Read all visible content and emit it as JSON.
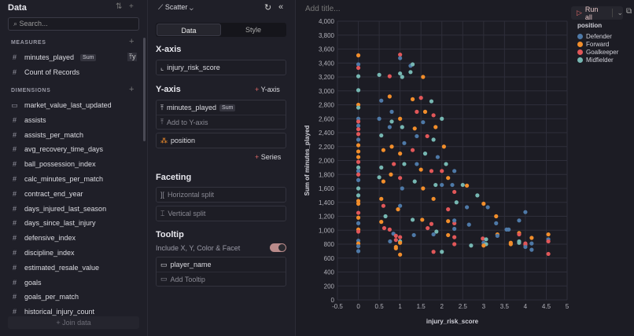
{
  "data_panel": {
    "title": "Data",
    "search_placeholder": "Search...",
    "measures_label": "MEASURES",
    "dimensions_label": "DIMENSIONS",
    "measures": [
      {
        "name": "minutes_played",
        "badge": "Sum"
      },
      {
        "name": "Count of Records"
      }
    ],
    "dimensions": [
      {
        "name": "market_value_last_updated",
        "icon": "calendar-icon"
      },
      {
        "name": "assists"
      },
      {
        "name": "assists_per_match"
      },
      {
        "name": "avg_recovery_time_days"
      },
      {
        "name": "ball_possession_index"
      },
      {
        "name": "calc_minutes_per_match"
      },
      {
        "name": "contract_end_year"
      },
      {
        "name": "days_injured_last_season"
      },
      {
        "name": "days_since_last_injury"
      },
      {
        "name": "defensive_index"
      },
      {
        "name": "discipline_index"
      },
      {
        "name": "estimated_resale_value"
      },
      {
        "name": "goals"
      },
      {
        "name": "goals_per_match"
      },
      {
        "name": "historical_injury_count"
      }
    ],
    "join_label": "+ Join data"
  },
  "config": {
    "chart_type": "Scatter",
    "tab_data": "Data",
    "tab_style": "Style",
    "x_axis_label": "X-axis",
    "x_field": "injury_risk_score",
    "y_axis_label": "Y-axis",
    "add_y": "Y-axis",
    "y_field": "minutes_played",
    "y_badge": "Sum",
    "add_to_y": "Add to Y-axis",
    "series_field": "position",
    "add_series": "Series",
    "faceting_label": "Faceting",
    "horizontal_split": "Horizontal split",
    "vertical_split": "Vertical split",
    "tooltip_label": "Tooltip",
    "include_label": "Include X, Y, Color & Facet",
    "include_on": true,
    "tooltip_field": "player_name",
    "add_tooltip": "Add Tooltip"
  },
  "main": {
    "title_placeholder": "Add title...",
    "run_label": "Run all"
  },
  "chart_data": {
    "type": "scatter",
    "xlabel": "injury_risk_score",
    "ylabel": "Sum of minutes_played",
    "xlim": [
      -0.5,
      5
    ],
    "ylim": [
      0,
      4000
    ],
    "grid": true,
    "x_ticks": [
      "-0.5",
      "0",
      "0.5",
      "1",
      "1.5",
      "2",
      "2.5",
      "3",
      "3.5",
      "4",
      "4.5",
      "5"
    ],
    "y_ticks": [
      "0",
      "200",
      "400",
      "600",
      "800",
      "1,000",
      "1,200",
      "1,400",
      "1,600",
      "1,800",
      "2,000",
      "2,200",
      "2,400",
      "2,600",
      "2,800",
      "3,000",
      "3,200",
      "3,400",
      "3,600",
      "3,800",
      "4,000"
    ],
    "legend": {
      "title": "position",
      "placement": "top-right",
      "items": [
        {
          "name": "Defender",
          "color": "#4e79a7"
        },
        {
          "name": "Forward",
          "color": "#f28e2b"
        },
        {
          "name": "Goalkeeper",
          "color": "#e15759"
        },
        {
          "name": "Midfielder",
          "color": "#76b7b2"
        }
      ]
    },
    "points": [
      [
        0,
        3510,
        "F"
      ],
      [
        0,
        3380,
        "D"
      ],
      [
        0,
        3330,
        "G"
      ],
      [
        0,
        3210,
        "M"
      ],
      [
        0,
        3010,
        "M"
      ],
      [
        0,
        2800,
        "F"
      ],
      [
        0,
        2760,
        "M"
      ],
      [
        0,
        2600,
        "D"
      ],
      [
        0,
        2560,
        "G"
      ],
      [
        0,
        2500,
        "D"
      ],
      [
        0,
        2450,
        "G"
      ],
      [
        0,
        2380,
        "G"
      ],
      [
        0,
        2300,
        "D"
      ],
      [
        0,
        2220,
        "F"
      ],
      [
        0,
        2130,
        "F"
      ],
      [
        0,
        2050,
        "F"
      ],
      [
        0,
        1980,
        "G"
      ],
      [
        0,
        1900,
        "M"
      ],
      [
        0,
        1850,
        "D"
      ],
      [
        0,
        1800,
        "G"
      ],
      [
        0,
        1720,
        "D"
      ],
      [
        0,
        1600,
        "M"
      ],
      [
        0,
        1500,
        "M"
      ],
      [
        0,
        1420,
        "F"
      ],
      [
        0,
        1380,
        "F"
      ],
      [
        0,
        1250,
        "G"
      ],
      [
        0,
        1180,
        "F"
      ],
      [
        0,
        1100,
        "D"
      ],
      [
        0,
        1010,
        "F"
      ],
      [
        0,
        980,
        "G"
      ],
      [
        0,
        850,
        "D"
      ],
      [
        0,
        810,
        "F"
      ],
      [
        0,
        770,
        "D"
      ],
      [
        0,
        700,
        "D"
      ],
      [
        0.5,
        3230,
        "M"
      ],
      [
        0.55,
        2860,
        "D"
      ],
      [
        0.5,
        2600,
        "D"
      ],
      [
        0.55,
        2360,
        "M"
      ],
      [
        0.6,
        2150,
        "F"
      ],
      [
        0.55,
        1900,
        "M"
      ],
      [
        0.5,
        1760,
        "M"
      ],
      [
        0.6,
        1700,
        "F"
      ],
      [
        0.55,
        1450,
        "F"
      ],
      [
        0.6,
        1350,
        "G"
      ],
      [
        0.55,
        1120,
        "F"
      ],
      [
        0.62,
        1030,
        "G"
      ],
      [
        0.65,
        1200,
        "M"
      ],
      [
        0.75,
        3210,
        "G"
      ],
      [
        0.75,
        2920,
        "F"
      ],
      [
        0.8,
        2700,
        "D"
      ],
      [
        0.8,
        2560,
        "M"
      ],
      [
        0.75,
        2480,
        "D"
      ],
      [
        0.8,
        2200,
        "F"
      ],
      [
        0.85,
        1950,
        "G"
      ],
      [
        0.78,
        1800,
        "F"
      ],
      [
        0.76,
        840,
        "D"
      ],
      [
        0.84,
        950,
        "D"
      ],
      [
        0.9,
        920,
        "G"
      ],
      [
        0.9,
        860,
        "G"
      ],
      [
        0.9,
        760,
        "F"
      ],
      [
        0.9,
        740,
        "F"
      ],
      [
        0.75,
        1010,
        "G"
      ],
      [
        1,
        3520,
        "G"
      ],
      [
        1,
        3470,
        "D"
      ],
      [
        1,
        3250,
        "M"
      ],
      [
        1.05,
        3200,
        "M"
      ],
      [
        1,
        2600,
        "F"
      ],
      [
        1.05,
        2480,
        "M"
      ],
      [
        1.1,
        2250,
        "D"
      ],
      [
        1.0,
        2100,
        "F"
      ],
      [
        1.1,
        1950,
        "M"
      ],
      [
        1.0,
        1750,
        "G"
      ],
      [
        1.05,
        1600,
        "D"
      ],
      [
        1.0,
        1350,
        "D"
      ],
      [
        1.0,
        900,
        "G"
      ],
      [
        1.0,
        840,
        "M"
      ],
      [
        1.0,
        820,
        "F"
      ],
      [
        1.0,
        650,
        "F"
      ],
      [
        0.95,
        1300,
        "F"
      ],
      [
        1.25,
        3360,
        "D"
      ],
      [
        1.3,
        3380,
        "M"
      ],
      [
        1.25,
        3270,
        "M"
      ],
      [
        1.3,
        2880,
        "F"
      ],
      [
        1.4,
        2700,
        "G"
      ],
      [
        1.35,
        2460,
        "F"
      ],
      [
        1.4,
        2350,
        "D"
      ],
      [
        1.3,
        2150,
        "G"
      ],
      [
        1.4,
        1950,
        "D"
      ],
      [
        1.35,
        1700,
        "M"
      ],
      [
        1.33,
        930,
        "D"
      ],
      [
        1.3,
        1150,
        "M"
      ],
      [
        1.55,
        3200,
        "F"
      ],
      [
        1.5,
        2900,
        "G"
      ],
      [
        1.6,
        2700,
        "F"
      ],
      [
        1.55,
        2550,
        "D"
      ],
      [
        1.65,
        2350,
        "G"
      ],
      [
        1.6,
        2100,
        "M"
      ],
      [
        1.5,
        1870,
        "F"
      ],
      [
        1.55,
        1600,
        "F"
      ],
      [
        1.53,
        1150,
        "F"
      ],
      [
        1.66,
        1030,
        "G"
      ],
      [
        1.75,
        1090,
        "G"
      ],
      [
        1.75,
        2850,
        "M"
      ],
      [
        1.8,
        2650,
        "G"
      ],
      [
        1.85,
        2480,
        "F"
      ],
      [
        1.8,
        2300,
        "M"
      ],
      [
        1.9,
        2050,
        "D"
      ],
      [
        1.75,
        1850,
        "G"
      ],
      [
        1.85,
        1650,
        "M"
      ],
      [
        1.8,
        1450,
        "F"
      ],
      [
        1.8,
        940,
        "D"
      ],
      [
        1.87,
        980,
        "M"
      ],
      [
        1.8,
        690,
        "G"
      ],
      [
        2,
        2600,
        "M"
      ],
      [
        2.05,
        2200,
        "F"
      ],
      [
        2.0,
        1850,
        "G"
      ],
      [
        2.1,
        1950,
        "M"
      ],
      [
        2.0,
        1650,
        "D"
      ],
      [
        2.15,
        1750,
        "F"
      ],
      [
        2.15,
        1300,
        "G"
      ],
      [
        2.15,
        1130,
        "F"
      ],
      [
        2.15,
        930,
        "F"
      ],
      [
        2.0,
        690,
        "M"
      ],
      [
        2.3,
        1850,
        "D"
      ],
      [
        2.25,
        1650,
        "D"
      ],
      [
        2.3,
        1550,
        "G"
      ],
      [
        2.35,
        1400,
        "M"
      ],
      [
        2.3,
        1100,
        "G"
      ],
      [
        2.3,
        1020,
        "D"
      ],
      [
        2.3,
        900,
        "G"
      ],
      [
        2.3,
        800,
        "G"
      ],
      [
        2.3,
        1140,
        "D"
      ],
      [
        2.5,
        1650,
        "M"
      ],
      [
        2.6,
        1640,
        "F"
      ],
      [
        2.65,
        1080,
        "D"
      ],
      [
        2.7,
        780,
        "M"
      ],
      [
        2.6,
        1330,
        "D"
      ],
      [
        2.85,
        1500,
        "M"
      ],
      [
        3,
        1380,
        "F"
      ],
      [
        3.1,
        1330,
        "D"
      ],
      [
        2.98,
        880,
        "G"
      ],
      [
        3.0,
        820,
        "D"
      ],
      [
        3.06,
        870,
        "M"
      ],
      [
        3.06,
        800,
        "M"
      ],
      [
        3.0,
        780,
        "F"
      ],
      [
        3.3,
        1200,
        "F"
      ],
      [
        3.3,
        1100,
        "D"
      ],
      [
        3.33,
        940,
        "F"
      ],
      [
        3.33,
        920,
        "D"
      ],
      [
        3.55,
        1010,
        "D"
      ],
      [
        3.65,
        800,
        "F"
      ],
      [
        3.65,
        820,
        "F"
      ],
      [
        3.85,
        960,
        "F"
      ],
      [
        3.85,
        940,
        "G"
      ],
      [
        3.85,
        840,
        "M"
      ],
      [
        3.85,
        820,
        "M"
      ],
      [
        3.85,
        1140,
        "D"
      ],
      [
        4,
        810,
        "G"
      ],
      [
        4.0,
        790,
        "G"
      ],
      [
        4.0,
        760,
        "D"
      ],
      [
        4.15,
        890,
        "F"
      ],
      [
        4.15,
        810,
        "D"
      ],
      [
        4.15,
        720,
        "D"
      ],
      [
        4.55,
        940,
        "F"
      ],
      [
        4.55,
        870,
        "D"
      ],
      [
        4.55,
        840,
        "G"
      ],
      [
        4.55,
        660,
        "G"
      ],
      [
        4.0,
        1260,
        "D"
      ],
      [
        3.6,
        1010,
        "D"
      ]
    ]
  }
}
